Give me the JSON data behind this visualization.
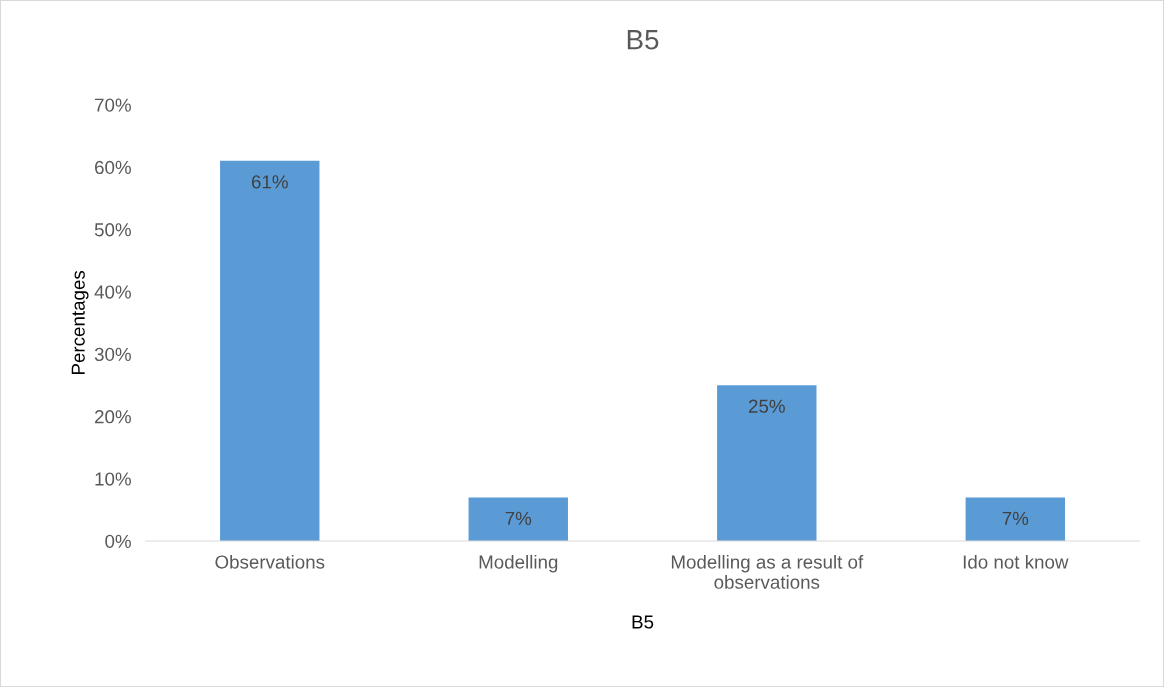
{
  "chart_data": {
    "type": "bar",
    "title": "B5",
    "xlabel": "B5",
    "ylabel": "Percentages",
    "categories": [
      "Observations",
      "Modelling",
      "Modelling as a result of\nobservations",
      "Ido not know"
    ],
    "values": [
      61,
      7,
      25,
      7
    ],
    "color": "#5b9bd5",
    "value_labels": [
      "61%",
      "7%",
      "25%",
      "7%"
    ],
    "ylim": [
      0,
      70
    ],
    "yticks": [
      {
        "value": 0,
        "label": "0%"
      },
      {
        "value": 10,
        "label": "10%"
      },
      {
        "value": 20,
        "label": "20%"
      },
      {
        "value": 30,
        "label": "30%"
      },
      {
        "value": 40,
        "label": "40%"
      },
      {
        "value": 50,
        "label": "50%"
      },
      {
        "value": 60,
        "label": "60%"
      },
      {
        "value": 70,
        "label": "70%"
      }
    ],
    "grid": false,
    "legend": false
  }
}
